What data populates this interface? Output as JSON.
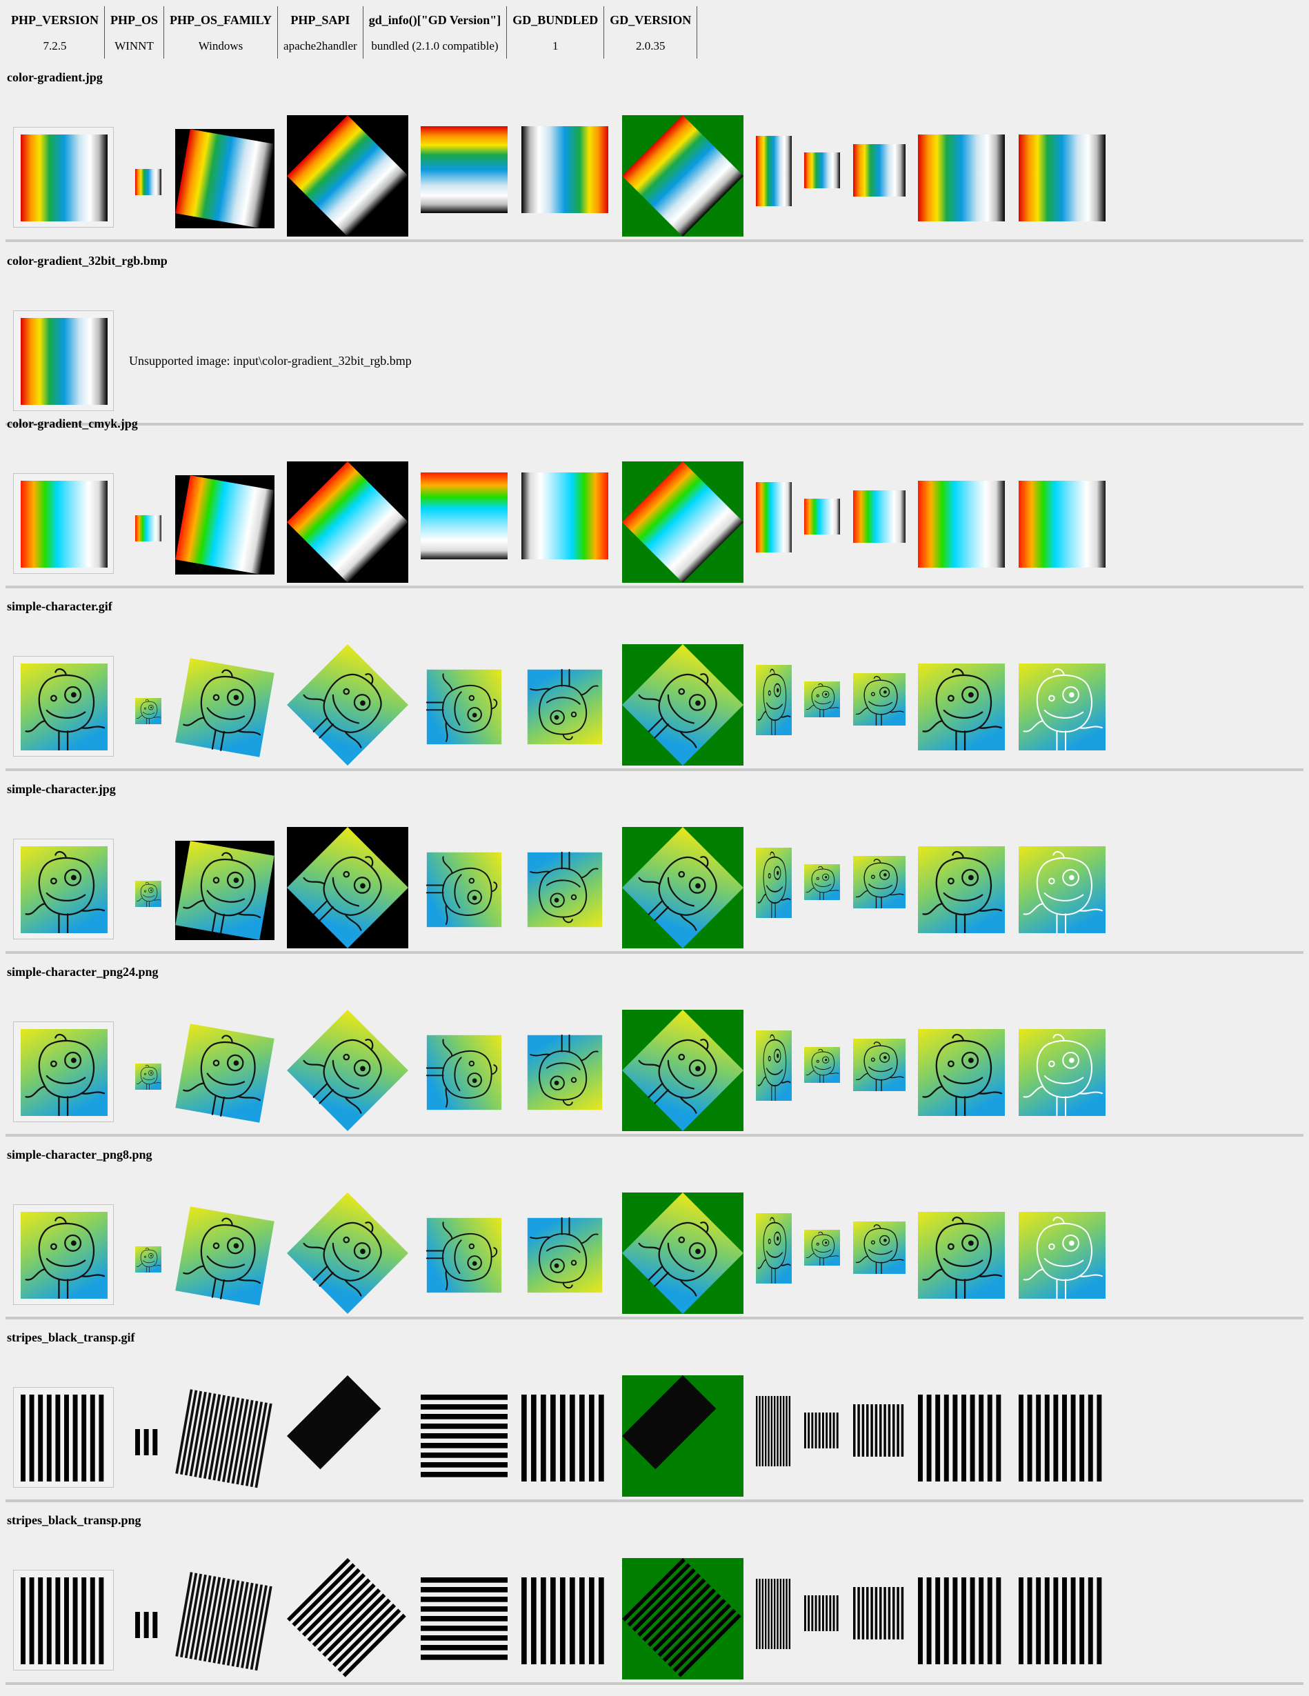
{
  "info_table": {
    "headers": [
      "PHP_VERSION",
      "PHP_OS",
      "PHP_OS_FAMILY",
      "PHP_SAPI",
      "gd_info()[\"GD Version\"]",
      "GD_BUNDLED",
      "GD_VERSION"
    ],
    "values": [
      "7.2.5",
      "WINNT",
      "Windows",
      "apache2handler",
      "bundled (2.1.0 compatible)",
      "1",
      "2.0.35"
    ]
  },
  "sections": [
    {
      "title": "color-gradient.jpg",
      "kind": "gradient",
      "gradient": "rgb"
    },
    {
      "title": "color-gradient_32bit_rgb.bmp",
      "kind": "unsupported",
      "message": "Unsupported image: input\\color-gradient_32bit_rgb.bmp"
    },
    {
      "title": "color-gradient_cmyk.jpg",
      "kind": "gradient",
      "gradient": "cmyk"
    },
    {
      "title": "simple-character.gif",
      "kind": "character",
      "rotbg": "transparent"
    },
    {
      "title": "simple-character.jpg",
      "kind": "character",
      "rotbg": "black"
    },
    {
      "title": "simple-character_png24.png",
      "kind": "character",
      "rotbg": "transparent"
    },
    {
      "title": "simple-character_png8.png",
      "kind": "character",
      "rotbg": "transparent"
    },
    {
      "title": "stripes_black_transp.gif",
      "kind": "stripes",
      "variant": "gif"
    },
    {
      "title": "stripes_black_transp.png",
      "kind": "stripes",
      "variant": "png"
    }
  ],
  "colors": {
    "page_bg": "#efefef",
    "green_bg": "#007f00",
    "separator": "#c9c9c9",
    "char_yellow": "#e8e81a",
    "char_blue": "#1aa0e0"
  }
}
